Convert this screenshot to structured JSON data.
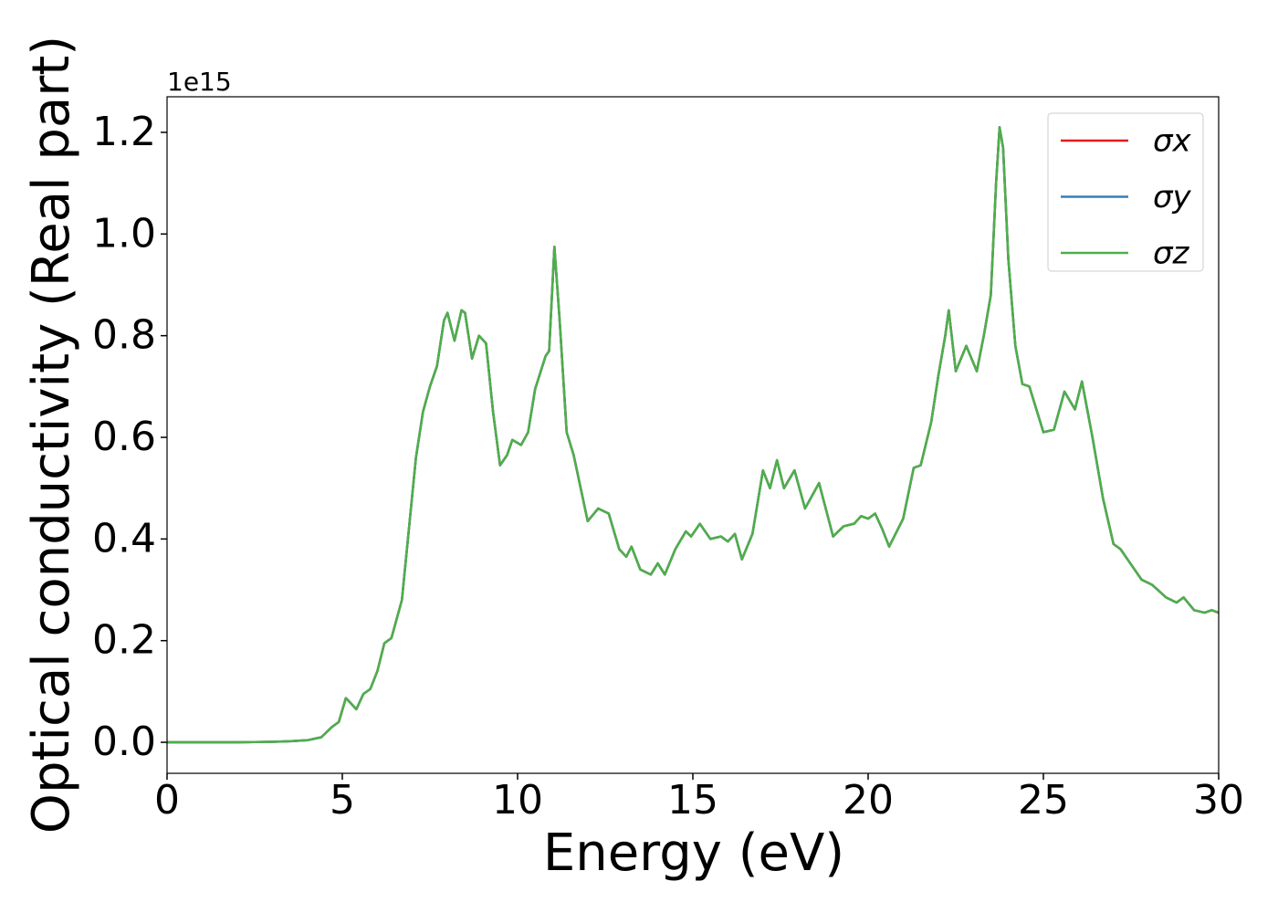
{
  "chart_data": {
    "type": "line",
    "xlabel": "Energy (eV)",
    "ylabel": "Optical conductivity (Real part)",
    "y_offset_label": "1e15",
    "x": [
      0,
      1,
      2,
      3,
      3.5,
      4,
      4.4,
      4.7,
      4.9,
      5.1,
      5.2,
      5.4,
      5.6,
      5.8,
      6.0,
      6.2,
      6.4,
      6.7,
      6.9,
      7.1,
      7.3,
      7.5,
      7.7,
      7.9,
      8.0,
      8.2,
      8.4,
      8.5,
      8.7,
      8.9,
      9.1,
      9.3,
      9.5,
      9.7,
      9.85,
      10.1,
      10.3,
      10.5,
      10.8,
      10.9,
      11.05,
      11.2,
      11.4,
      11.6,
      11.8,
      12.0,
      12.3,
      12.6,
      12.9,
      13.1,
      13.25,
      13.5,
      13.8,
      14.0,
      14.2,
      14.5,
      14.8,
      14.95,
      15.2,
      15.5,
      15.8,
      16.0,
      16.2,
      16.4,
      16.7,
      17.0,
      17.2,
      17.4,
      17.6,
      17.9,
      18.2,
      18.6,
      19.0,
      19.3,
      19.6,
      19.8,
      20.0,
      20.2,
      20.4,
      20.6,
      21.0,
      21.3,
      21.5,
      21.8,
      22.0,
      22.2,
      22.3,
      22.5,
      22.8,
      23.1,
      23.3,
      23.5,
      23.65,
      23.75,
      23.85,
      24.0,
      24.2,
      24.4,
      24.6,
      25.0,
      25.3,
      25.6,
      25.9,
      26.1,
      26.4,
      26.7,
      27.0,
      27.2,
      27.5,
      27.8,
      28.1,
      28.5,
      28.8,
      29.0,
      29.3,
      29.6,
      29.8,
      30
    ],
    "series": [
      {
        "name": "σx",
        "color": "#e41a1c",
        "values": [
          0,
          0,
          0,
          0.001,
          0.002,
          0.004,
          0.01,
          0.03,
          0.04,
          0.087,
          0.08,
          0.065,
          0.095,
          0.105,
          0.14,
          0.195,
          0.205,
          0.28,
          0.42,
          0.56,
          0.65,
          0.7,
          0.74,
          0.83,
          0.845,
          0.79,
          0.85,
          0.845,
          0.755,
          0.8,
          0.785,
          0.65,
          0.545,
          0.565,
          0.595,
          0.585,
          0.61,
          0.695,
          0.76,
          0.77,
          0.975,
          0.83,
          0.61,
          0.565,
          0.5,
          0.435,
          0.46,
          0.45,
          0.38,
          0.365,
          0.385,
          0.34,
          0.33,
          0.352,
          0.33,
          0.38,
          0.415,
          0.405,
          0.43,
          0.4,
          0.405,
          0.395,
          0.41,
          0.36,
          0.41,
          0.535,
          0.5,
          0.555,
          0.5,
          0.535,
          0.46,
          0.51,
          0.405,
          0.425,
          0.43,
          0.445,
          0.44,
          0.45,
          0.42,
          0.385,
          0.44,
          0.54,
          0.545,
          0.63,
          0.72,
          0.8,
          0.85,
          0.73,
          0.78,
          0.73,
          0.8,
          0.88,
          1.1,
          1.21,
          1.17,
          0.95,
          0.78,
          0.705,
          0.7,
          0.61,
          0.615,
          0.69,
          0.655,
          0.71,
          0.6,
          0.48,
          0.39,
          0.38,
          0.35,
          0.32,
          0.31,
          0.285,
          0.275,
          0.285,
          0.26,
          0.255,
          0.26,
          0.255
        ]
      },
      {
        "name": "σy",
        "color": "#377eb8",
        "values": [
          0,
          0,
          0,
          0.001,
          0.002,
          0.004,
          0.01,
          0.03,
          0.04,
          0.087,
          0.08,
          0.065,
          0.095,
          0.105,
          0.14,
          0.195,
          0.205,
          0.28,
          0.42,
          0.56,
          0.65,
          0.7,
          0.74,
          0.83,
          0.845,
          0.79,
          0.85,
          0.845,
          0.755,
          0.8,
          0.785,
          0.65,
          0.545,
          0.565,
          0.595,
          0.585,
          0.61,
          0.695,
          0.76,
          0.77,
          0.975,
          0.83,
          0.61,
          0.565,
          0.5,
          0.435,
          0.46,
          0.45,
          0.38,
          0.365,
          0.385,
          0.34,
          0.33,
          0.352,
          0.33,
          0.38,
          0.415,
          0.405,
          0.43,
          0.4,
          0.405,
          0.395,
          0.41,
          0.36,
          0.41,
          0.535,
          0.5,
          0.555,
          0.5,
          0.535,
          0.46,
          0.51,
          0.405,
          0.425,
          0.43,
          0.445,
          0.44,
          0.45,
          0.42,
          0.385,
          0.44,
          0.54,
          0.545,
          0.63,
          0.72,
          0.8,
          0.85,
          0.73,
          0.78,
          0.73,
          0.8,
          0.88,
          1.1,
          1.21,
          1.17,
          0.95,
          0.78,
          0.705,
          0.7,
          0.61,
          0.615,
          0.69,
          0.655,
          0.71,
          0.6,
          0.48,
          0.39,
          0.38,
          0.35,
          0.32,
          0.31,
          0.285,
          0.275,
          0.285,
          0.26,
          0.255,
          0.26,
          0.255
        ]
      },
      {
        "name": "σz",
        "color": "#4daf4a",
        "values": [
          0,
          0,
          0,
          0.001,
          0.002,
          0.004,
          0.01,
          0.03,
          0.04,
          0.087,
          0.08,
          0.065,
          0.095,
          0.105,
          0.14,
          0.195,
          0.205,
          0.28,
          0.42,
          0.56,
          0.65,
          0.7,
          0.74,
          0.83,
          0.845,
          0.79,
          0.85,
          0.845,
          0.755,
          0.8,
          0.785,
          0.65,
          0.545,
          0.565,
          0.595,
          0.585,
          0.61,
          0.695,
          0.76,
          0.77,
          0.975,
          0.83,
          0.61,
          0.565,
          0.5,
          0.435,
          0.46,
          0.45,
          0.38,
          0.365,
          0.385,
          0.34,
          0.33,
          0.352,
          0.33,
          0.38,
          0.415,
          0.405,
          0.43,
          0.4,
          0.405,
          0.395,
          0.41,
          0.36,
          0.41,
          0.535,
          0.5,
          0.555,
          0.5,
          0.535,
          0.46,
          0.51,
          0.405,
          0.425,
          0.43,
          0.445,
          0.44,
          0.45,
          0.42,
          0.385,
          0.44,
          0.54,
          0.545,
          0.63,
          0.72,
          0.8,
          0.85,
          0.73,
          0.78,
          0.73,
          0.8,
          0.88,
          1.1,
          1.21,
          1.17,
          0.95,
          0.78,
          0.705,
          0.7,
          0.61,
          0.615,
          0.69,
          0.655,
          0.71,
          0.6,
          0.48,
          0.39,
          0.38,
          0.35,
          0.32,
          0.31,
          0.285,
          0.275,
          0.285,
          0.26,
          0.255,
          0.26,
          0.255
        ]
      }
    ],
    "xlim": [
      0,
      30
    ],
    "xticks": [
      0,
      5,
      10,
      15,
      20,
      25,
      30
    ],
    "ylim": [
      -0.061,
      1.27
    ],
    "yticks": [
      {
        "value": 0,
        "label": "0.0"
      },
      0.2,
      0.4,
      0.6,
      0.8,
      {
        "value": 1,
        "label": "1.0"
      },
      1.2
    ],
    "grid": false,
    "legend": "upper right"
  }
}
